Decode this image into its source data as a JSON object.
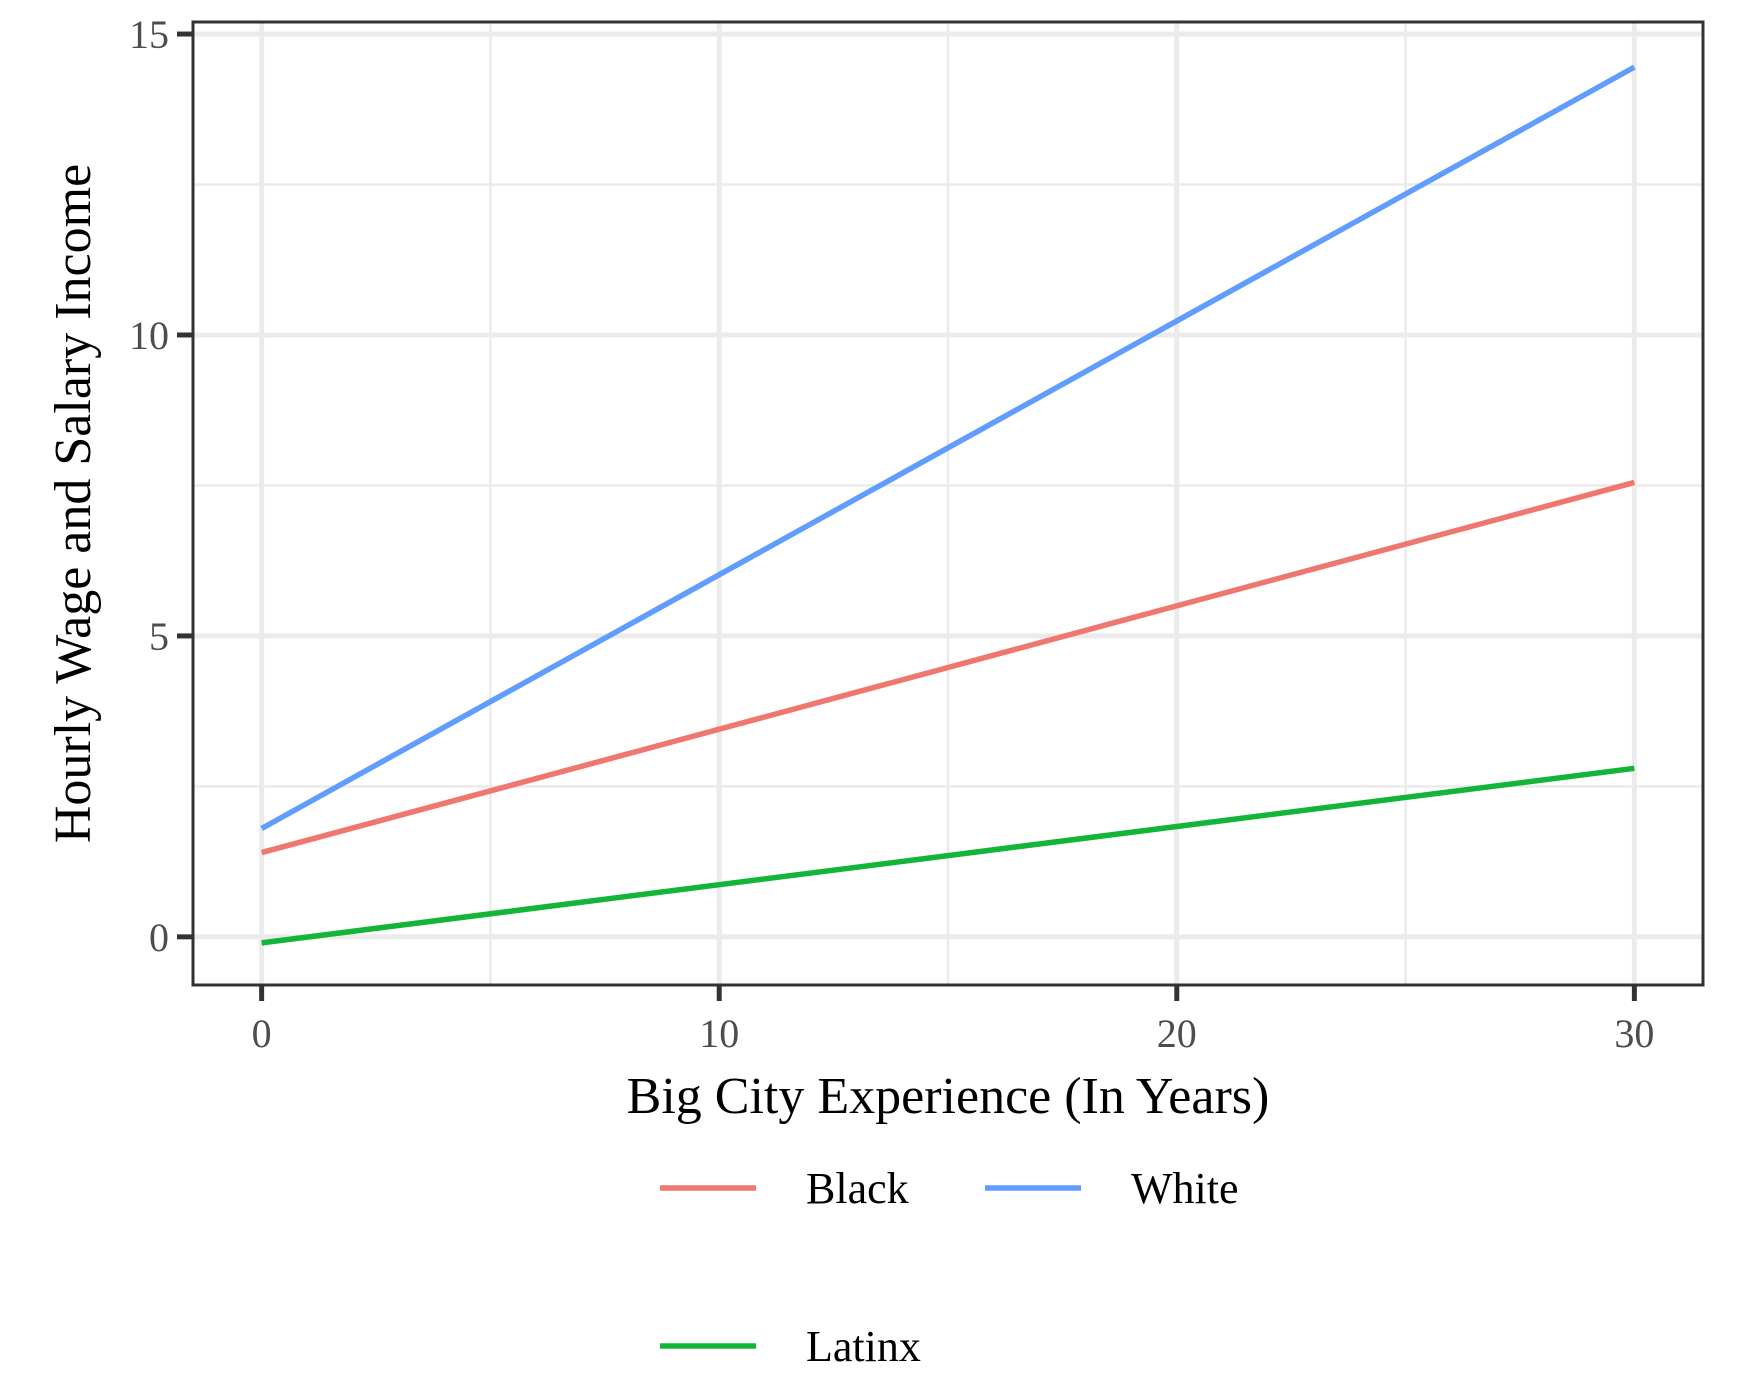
{
  "chart_data": {
    "type": "line",
    "xlabel": "Big City Experience (In Years)",
    "ylabel": "Hourly Wage and Salary Income",
    "xlim": [
      -1.5,
      31.5
    ],
    "ylim": [
      -0.8,
      15.2
    ],
    "x_ticks": [
      0,
      10,
      20,
      30
    ],
    "y_ticks": [
      0,
      5,
      10,
      15
    ],
    "x_minor": [
      5,
      15,
      25
    ],
    "y_minor": [
      2.5,
      7.5,
      12.5
    ],
    "grid": true,
    "legend_position": "bottom",
    "series": [
      {
        "name": "Black",
        "color": "#F0776F",
        "x": [
          0,
          30
        ],
        "y": [
          1.4,
          7.55
        ]
      },
      {
        "name": "White",
        "color": "#619CFF",
        "x": [
          0,
          30
        ],
        "y": [
          1.8,
          14.45
        ]
      },
      {
        "name": "Latinx",
        "color": "#13B539",
        "x": [
          0,
          30
        ],
        "y": [
          -0.1,
          2.8
        ]
      }
    ]
  }
}
